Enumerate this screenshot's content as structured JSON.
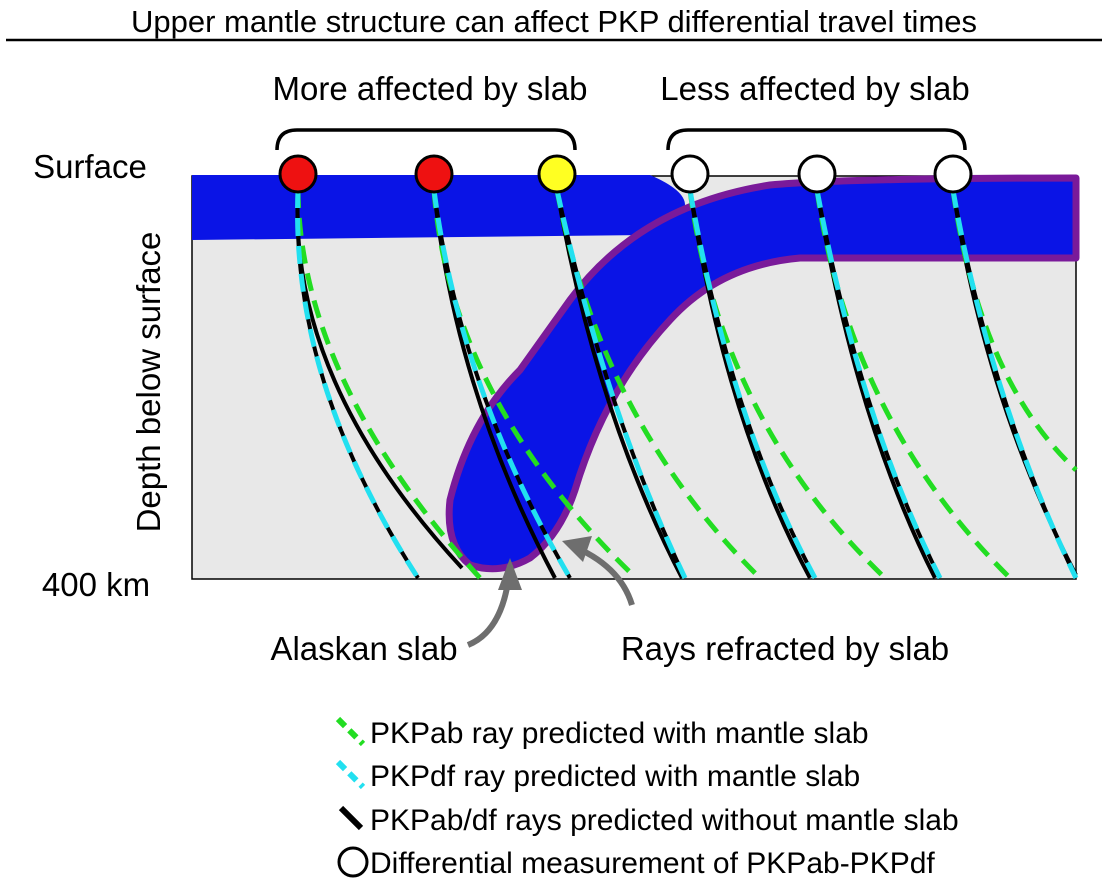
{
  "title": "Upper mantle structure can affect PKP differential travel times",
  "groups": {
    "more": "More affected by slab",
    "less": "Less affected by slab"
  },
  "axis": {
    "surface": "Surface",
    "depth": "Depth below surface",
    "bottom": "400 km"
  },
  "annotations": {
    "slab": "Alaskan slab",
    "refracted": "Rays refracted by slab"
  },
  "legend": [
    {
      "key": "pkpab",
      "text": "PKPab ray predicted with mantle slab",
      "color": "#22dd22"
    },
    {
      "key": "pkpdf",
      "text": "PKPdf ray predicted with mantle slab",
      "color": "#22e0f0"
    },
    {
      "key": "noslab",
      "text": "PKPab/df rays predicted without mantle slab",
      "color": "#000000"
    },
    {
      "key": "station",
      "text": "Differential measurement of PKPab-PKPdf",
      "color": "#ffffff"
    }
  ],
  "stations": [
    {
      "name": "station-1",
      "color": "#ee1111"
    },
    {
      "name": "station-2",
      "color": "#ee1111"
    },
    {
      "name": "station-3",
      "color": "#ffff22"
    },
    {
      "name": "station-4",
      "color": "#ffffff"
    },
    {
      "name": "station-5",
      "color": "#ffffff"
    },
    {
      "name": "station-6",
      "color": "#ffffff"
    }
  ],
  "colors": {
    "mantle": "#e8e8e8",
    "slab": "#0a14e6",
    "slab_edge": "#7a1a9a",
    "arrow": "#6e6e6e"
  }
}
